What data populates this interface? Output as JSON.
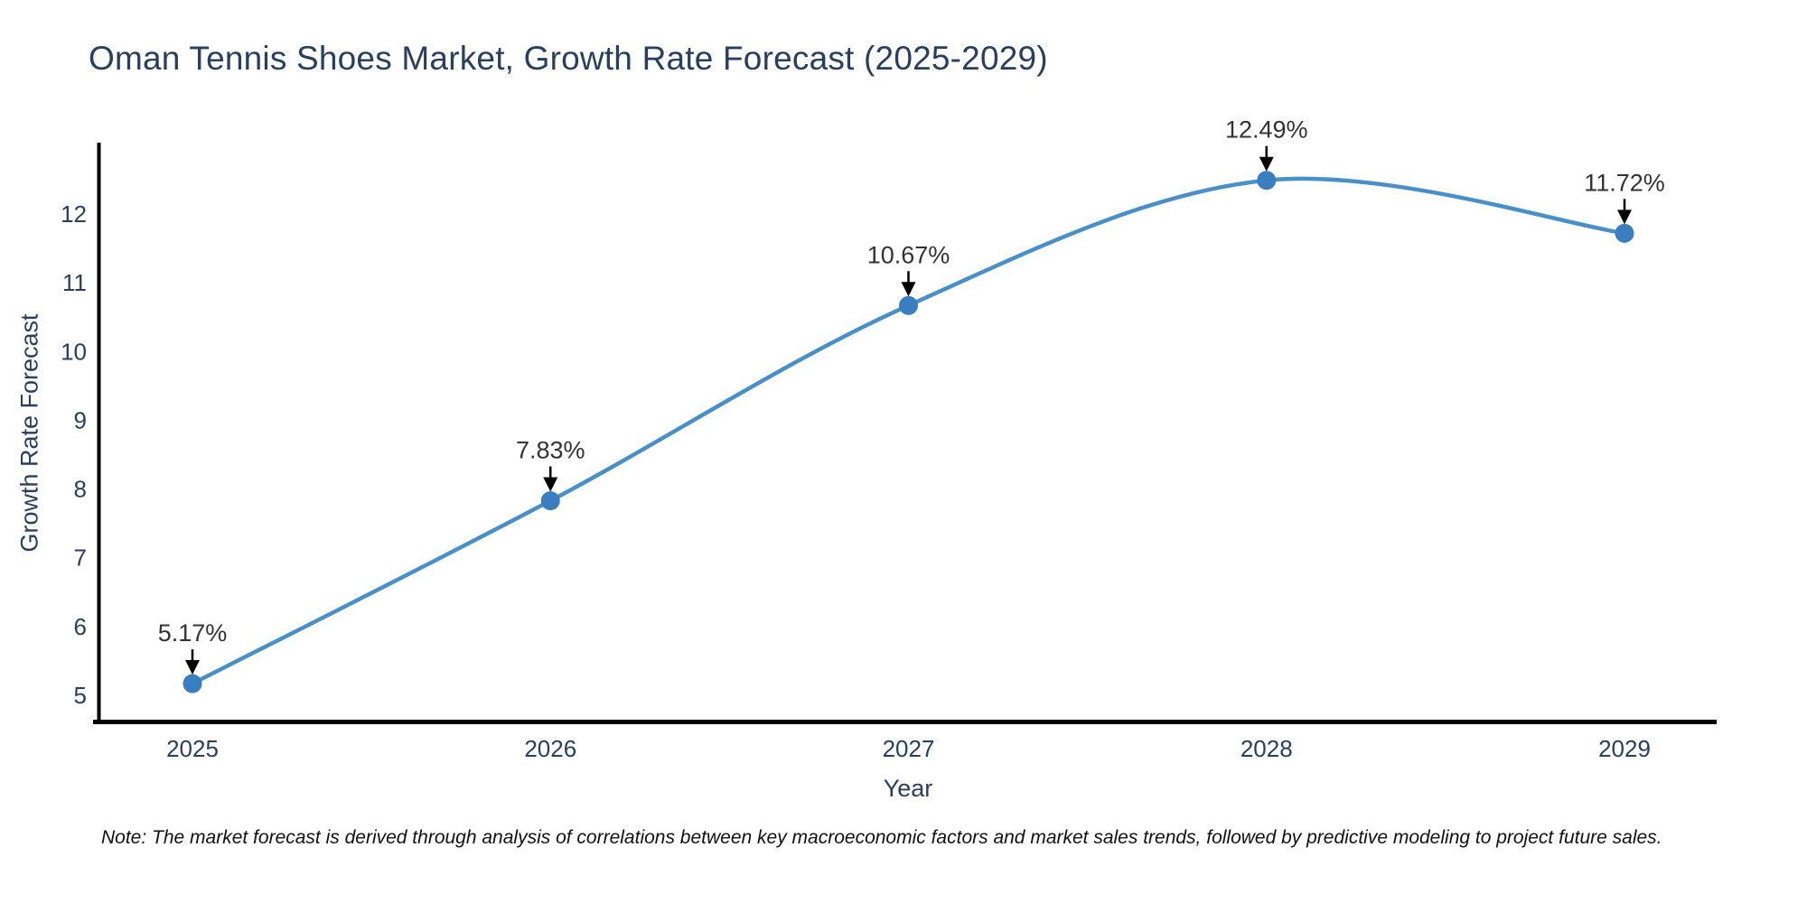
{
  "title": "Oman Tennis Shoes Market, Growth Rate Forecast (2025-2029)",
  "note": "Note: The market forecast is derived through analysis of correlations between key macroeconomic factors and market sales trends, followed by predictive modeling to project future sales.",
  "chart_data": {
    "type": "line",
    "title": "Oman Tennis Shoes Market, Growth Rate Forecast (2025-2029)",
    "xlabel": "Year",
    "ylabel": "Growth Rate Forecast",
    "x": [
      2025,
      2026,
      2027,
      2028,
      2029
    ],
    "series": [
      {
        "name": "Growth Rate Forecast",
        "values": [
          5.17,
          7.83,
          10.67,
          12.49,
          11.72
        ]
      }
    ],
    "point_labels": [
      "5.17%",
      "7.83%",
      "10.67%",
      "12.49%",
      "11.72%"
    ],
    "yticks": [
      5,
      6,
      7,
      8,
      9,
      10,
      11,
      12
    ],
    "xticks": [
      2025,
      2026,
      2027,
      2028,
      2029
    ],
    "xlim": [
      2024.74,
      2029.26
    ],
    "ylim": [
      4.6,
      13.0
    ],
    "line_shape": "spline",
    "grid": false,
    "legend": false,
    "colors": {
      "line": "#4a90c8",
      "marker": "#3a7ebf",
      "arrow": "#000000",
      "axis": "#000000",
      "tick_text": "#2a3f5f",
      "annotation_text": "#333333"
    }
  }
}
